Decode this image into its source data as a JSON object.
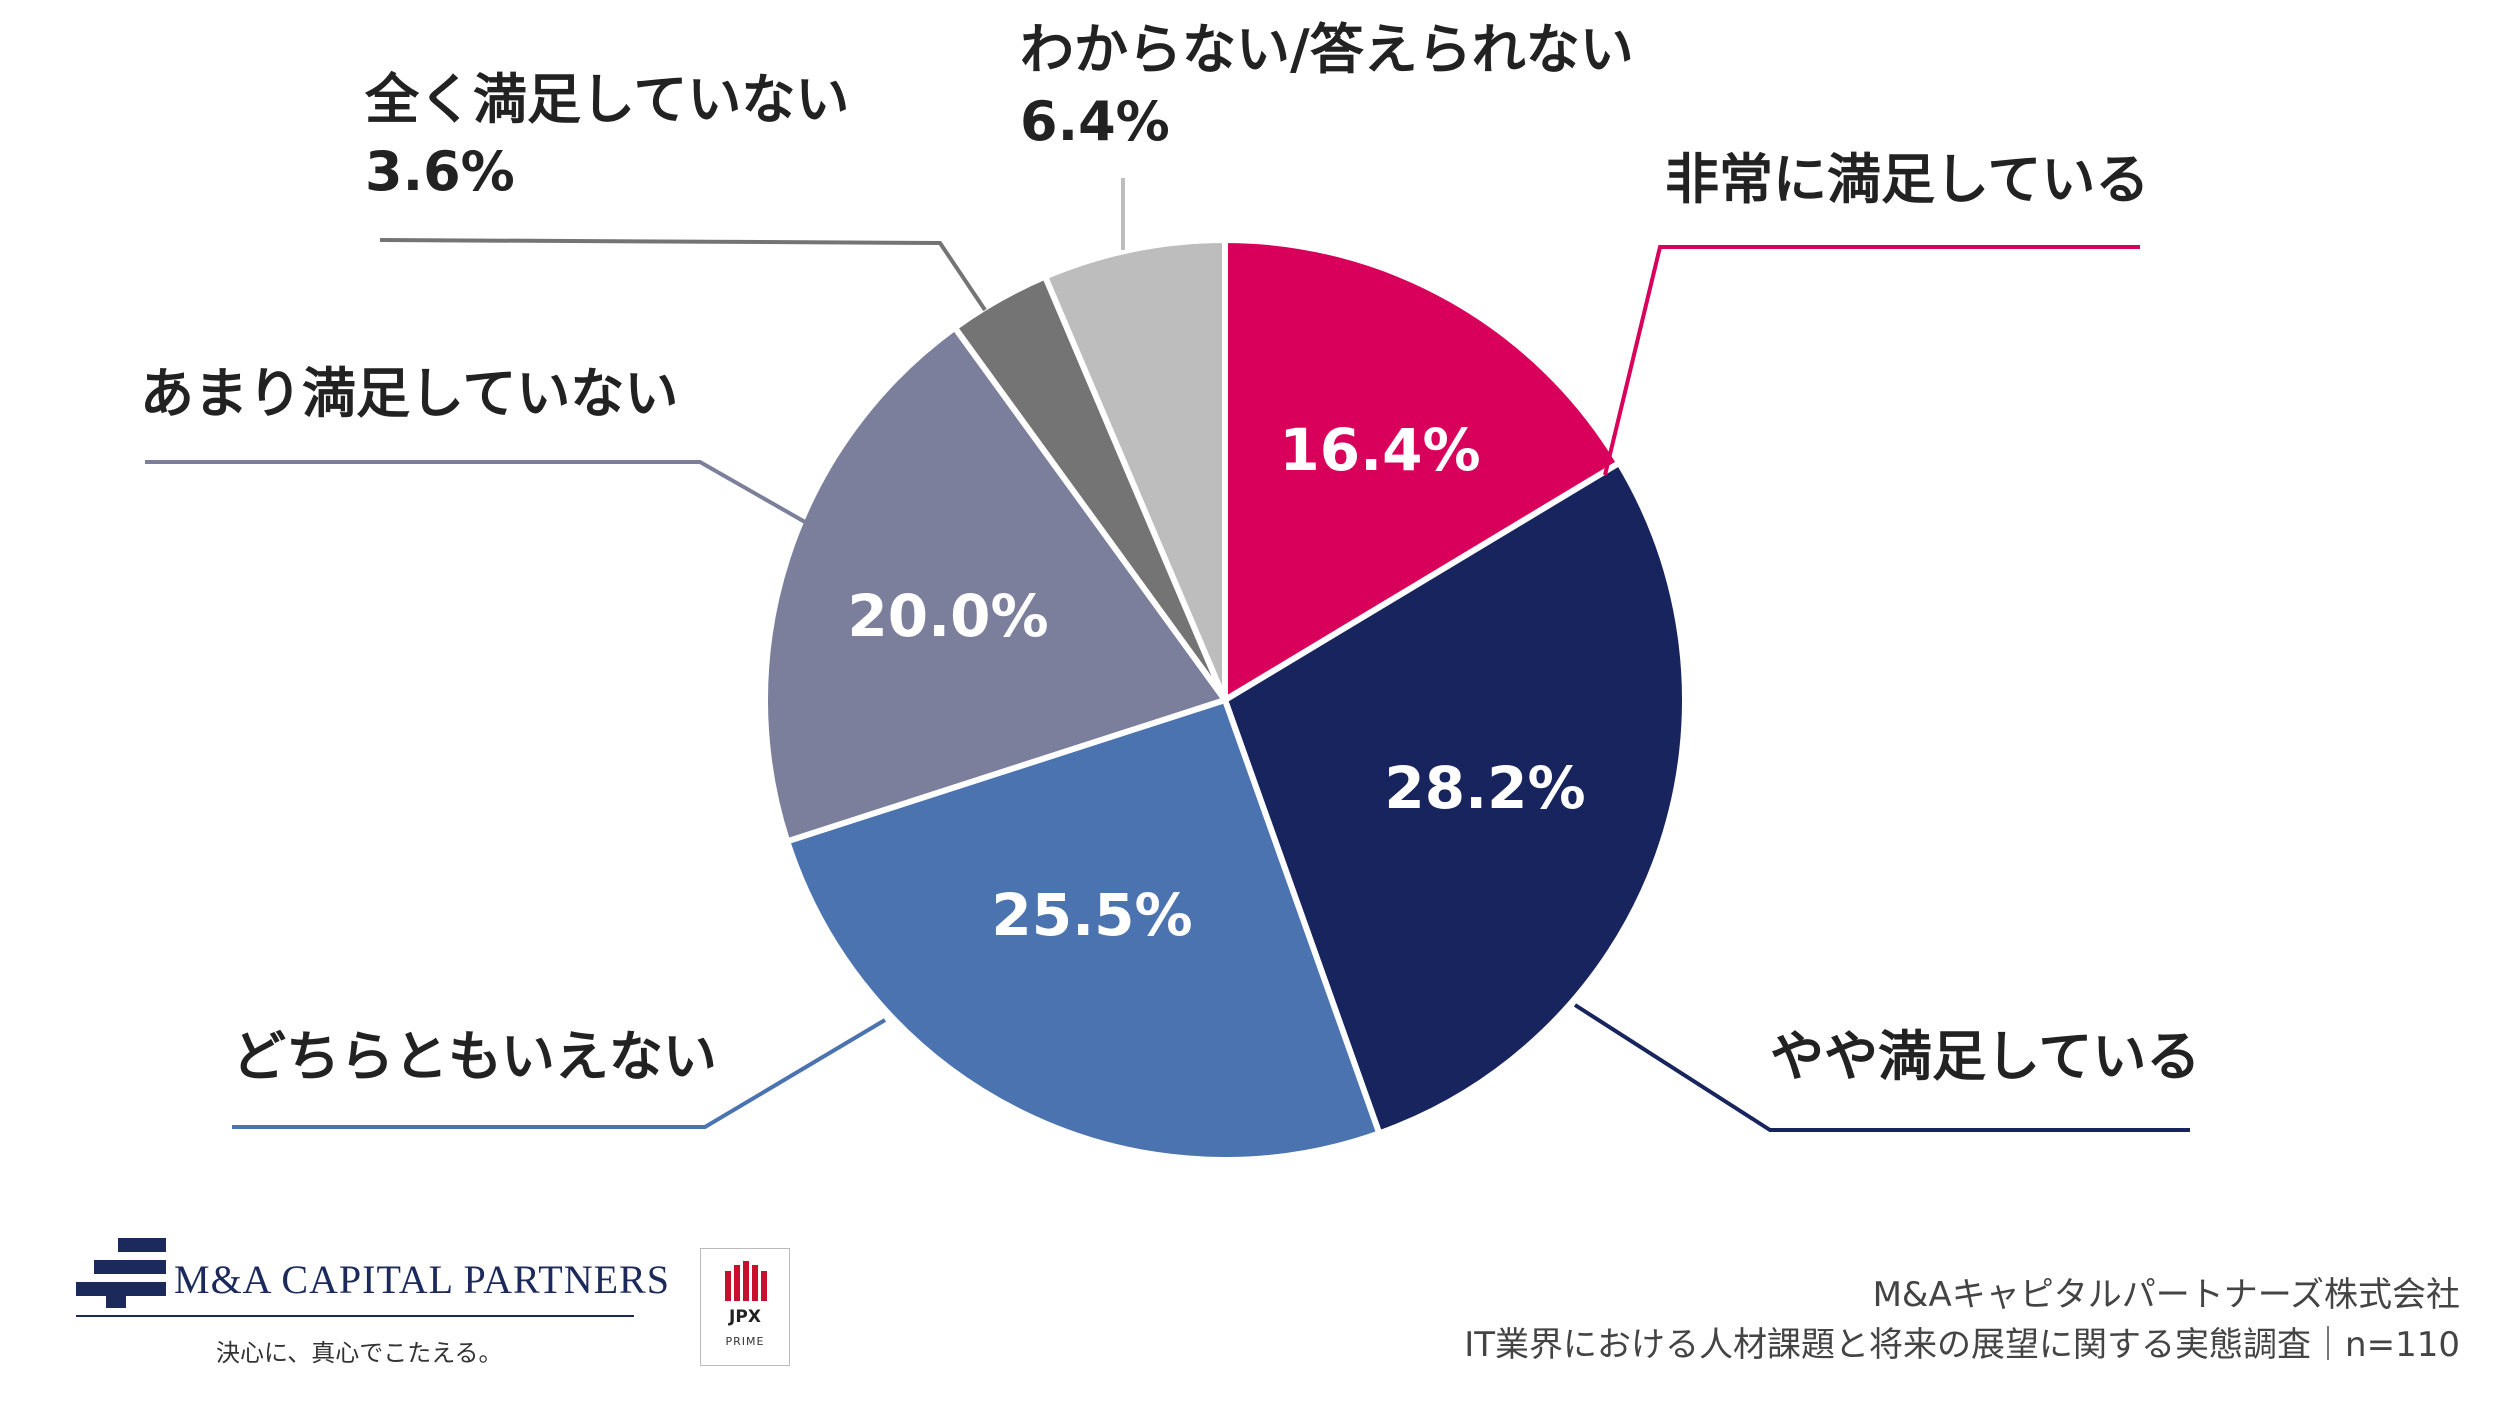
{
  "chart_data": {
    "type": "pie",
    "categories": [
      "非常に満足している",
      "やや満足している",
      "どちらともいえない",
      "あまり満足していない",
      "全く満足していない",
      "わからない/答えられない"
    ],
    "values": [
      16.4,
      28.2,
      25.5,
      20.0,
      3.6,
      6.4
    ],
    "value_labels": [
      "16.4%",
      "28.2%",
      "25.5%",
      "20.0%",
      "3.6%",
      "6.4%"
    ],
    "colors": [
      "#d9005b",
      "#18245e",
      "#4a73b0",
      "#7b7f9c",
      "#747474",
      "#bdbdbd"
    ],
    "start_angle": "12 o'clock",
    "direction": "clockwise"
  },
  "footer": {
    "company_logo_text": "M&A CAPITAL PARTNERS",
    "company_tagline": "決心に、真心でこたえる。",
    "exchange_logo_text": "JPX",
    "exchange_logo_sub": "PRIME",
    "source_line1": "M&Aキャピタルパートナーズ株式会社",
    "source_line2": "IT業界における人材課題と将来の展望に関する実態調査｜n=110"
  }
}
